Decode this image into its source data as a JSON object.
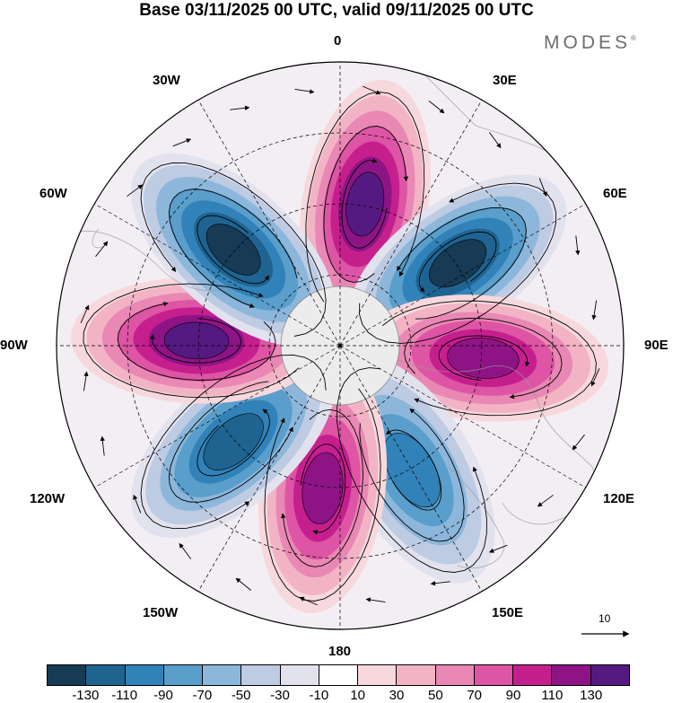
{
  "title": "Base 03/11/2025 00 UTC, valid 09/11/2025 00 UTC",
  "brand": {
    "name": "MODES",
    "mark": "®"
  },
  "map": {
    "projection": "south-polar-stereographic",
    "longitude_labels": [
      "0",
      "30E",
      "60E",
      "90E",
      "120E",
      "150E",
      "180",
      "150W",
      "120W",
      "90W",
      "60W",
      "30W"
    ],
    "anomaly_lobes": [
      {
        "sign": "positive",
        "peak": 130,
        "bearing_deg": 10
      },
      {
        "sign": "negative",
        "peak": -130,
        "bearing_deg": 55
      },
      {
        "sign": "positive",
        "peak": 110,
        "bearing_deg": 95
      },
      {
        "sign": "negative",
        "peak": -90,
        "bearing_deg": 150
      },
      {
        "sign": "positive",
        "peak": 110,
        "bearing_deg": 187
      },
      {
        "sign": "negative",
        "peak": -110,
        "bearing_deg": 228
      },
      {
        "sign": "positive",
        "peak": 130,
        "bearing_deg": 272
      },
      {
        "sign": "negative",
        "peak": -130,
        "bearing_deg": 312
      }
    ]
  },
  "vector_reference": {
    "label": "10"
  },
  "colorbar": {
    "ticks": [
      "-130",
      "-110",
      "-90",
      "-70",
      "-50",
      "-30",
      "-10",
      "10",
      "30",
      "50",
      "70",
      "90",
      "110",
      "130"
    ],
    "colors": [
      "#173a55",
      "#1f6491",
      "#3182b8",
      "#5a9ecb",
      "#8cb7da",
      "#bdcbe3",
      "#e2e2ef",
      "#ffffff",
      "#f7d8dc",
      "#f2b4c5",
      "#e988b4",
      "#dd55a4",
      "#c51f8e",
      "#8e1486",
      "#551a82"
    ]
  }
}
